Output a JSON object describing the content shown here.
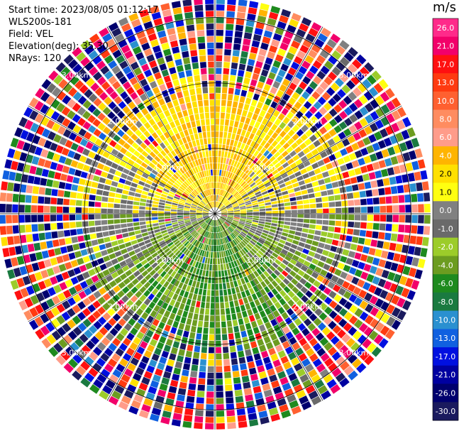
{
  "header": {
    "start_time": "Start time: 2023/08/05 01:12:17",
    "instrument": "WLS200s-181",
    "field": "Field: VEL",
    "elevation": "Elevation(deg): 35.30",
    "nrays": "NRays: 120"
  },
  "colorbar": {
    "unit": "m/s",
    "ticks": [
      "26.0",
      "21.0",
      "17.0",
      "13.0",
      "10.0",
      "8.0",
      "6.0",
      "4.0",
      "2.0",
      "1.0",
      "0.0",
      "-1.0",
      "-2.0",
      "-4.0",
      "-6.0",
      "-8.0",
      "-10.0",
      "-13.0",
      "-17.0",
      "-21.0",
      "-26.0",
      "-30.0"
    ],
    "colors": [
      "#ff2a8a",
      "#f2006a",
      "#ff1010",
      "#ff3a10",
      "#ff6030",
      "#ff8c60",
      "#ff9c8a",
      "#ffb400",
      "#ffe000",
      "#ffff10",
      "#808080",
      "#6a6a6a",
      "#9ccc2a",
      "#6c9c20",
      "#1e8a1e",
      "#1a7a40",
      "#2a90d0",
      "#1060e0",
      "#0010e0",
      "#0000a0",
      "#00006e",
      "#1a1a5e"
    ]
  },
  "chart_data": {
    "type": "heatmap",
    "projection": "polar",
    "field": "VEL",
    "n_rays": 120,
    "range_rings_km": [
      1.0,
      2.0,
      3.0
    ],
    "ring_labels": [
      "1.00km",
      "2.00km",
      "3.00km"
    ],
    "max_range_km": 3.3,
    "value_range": [
      -30.0,
      26.0
    ],
    "pattern": {
      "north_sector_mean": 4.0,
      "south_sector_mean": -4.0,
      "near_range_km": 1.9,
      "far_range_noise": true
    }
  }
}
